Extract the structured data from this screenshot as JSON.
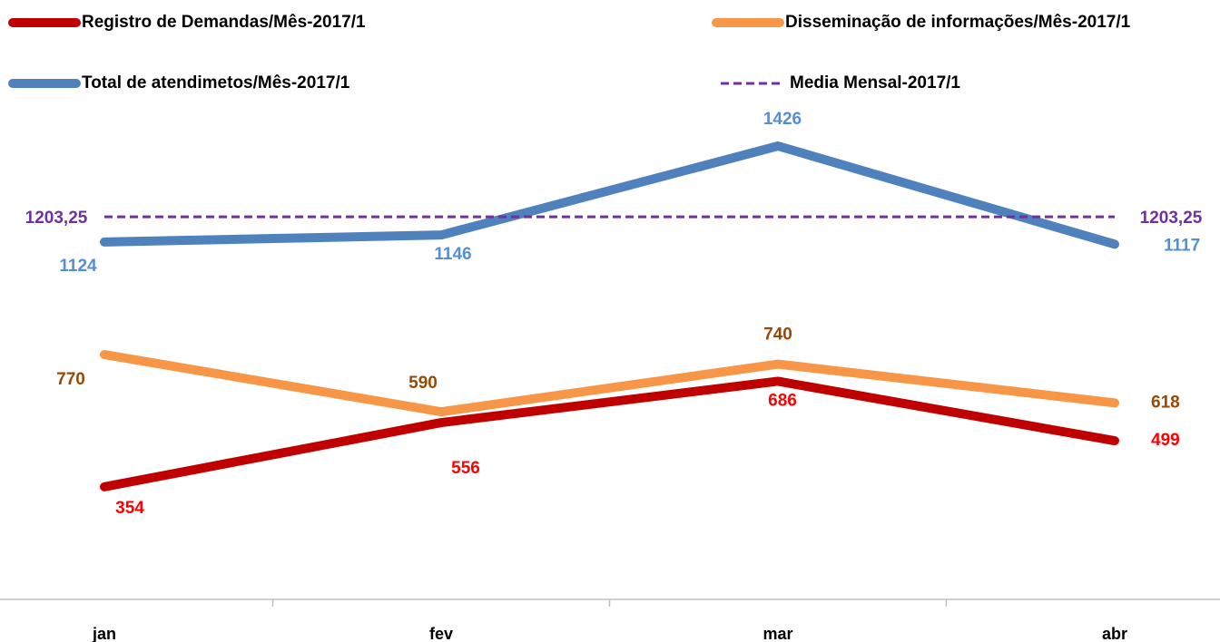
{
  "chart_data": {
    "type": "line",
    "categories": [
      "jan",
      "fev",
      "mar",
      "abr"
    ],
    "ylim": [
      0,
      1600
    ],
    "series": [
      {
        "name": "Registro de Demandas/Mês-2017/1",
        "color": "#c00000",
        "label_color": "#ff0000",
        "values": [
          354,
          556,
          686,
          499
        ]
      },
      {
        "name": "Disseminação de informações/Mês-2017/1",
        "color": "#f79646",
        "label_color": "#984807",
        "values": [
          770,
          590,
          740,
          618
        ]
      },
      {
        "name": "Total de atendimetos/Mês-2017/1",
        "color": "#4f81bd",
        "label_color": "#558ed5",
        "values": [
          1124,
          1146,
          1426,
          1117
        ]
      },
      {
        "name": "Media Mensal-2017/1",
        "color": "#7030a0",
        "label_color": "#7030a0",
        "style": "dashed",
        "values": [
          1203.25,
          1203.25,
          1203.25,
          1203.25
        ],
        "value_labels": [
          "1203,25",
          null,
          null,
          "1203,25"
        ]
      }
    ]
  }
}
